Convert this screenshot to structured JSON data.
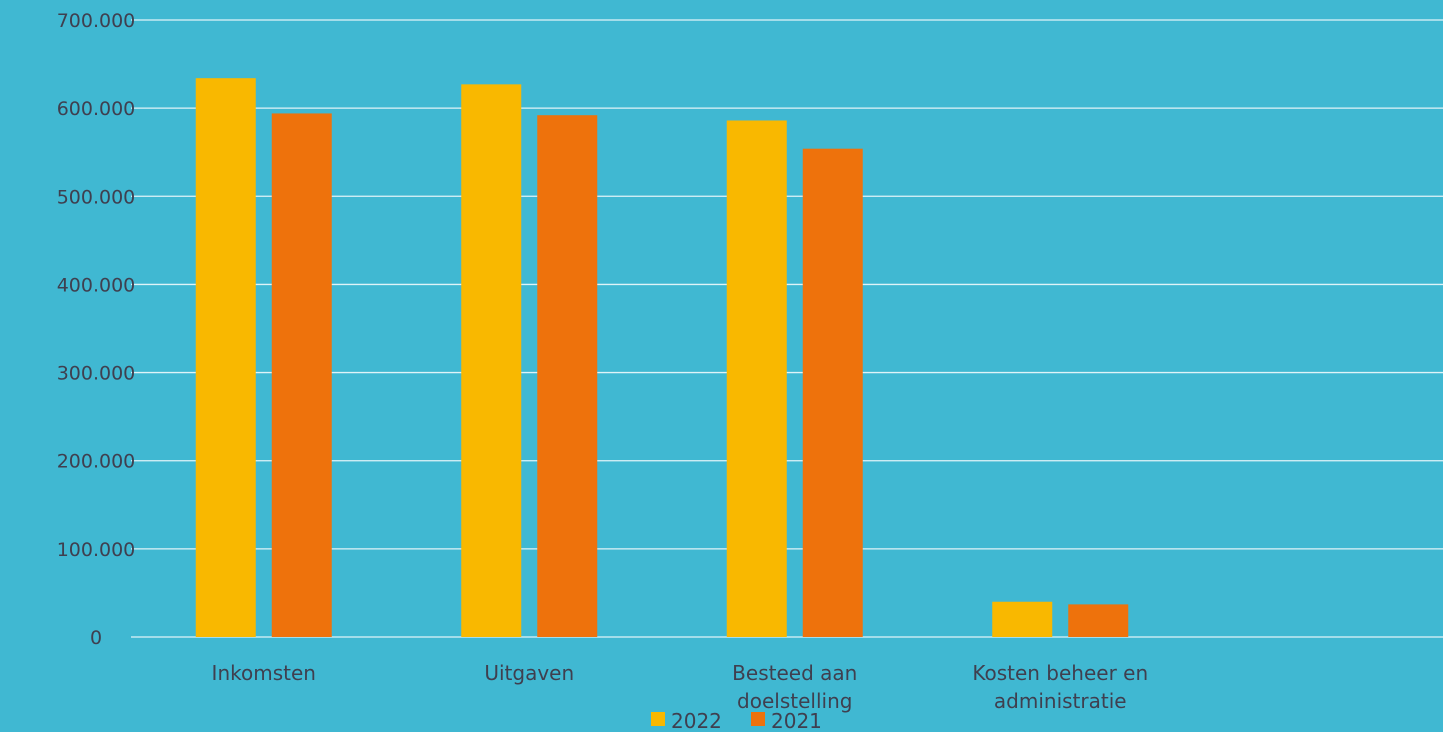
{
  "chart_data": {
    "type": "bar",
    "categories": [
      [
        "Inkomsten"
      ],
      [
        "Uitgaven"
      ],
      [
        "Besteed aan",
        "doelstelling"
      ],
      [
        "Kosten beheer en",
        "administratie"
      ]
    ],
    "series": [
      {
        "name": "2022",
        "color": "#f9b800",
        "values": [
          634000,
          627000,
          586000,
          40000
        ]
      },
      {
        "name": "2021",
        "color": "#ee720c",
        "values": [
          594000,
          592000,
          554000,
          37000
        ]
      }
    ],
    "y_ticks": [
      "0",
      "100.000",
      "200.000",
      "300.000",
      "400.000",
      "500.000",
      "600.000",
      "700.000"
    ],
    "ylim": [
      0,
      700000
    ],
    "grid": true,
    "legend_position": "bottom",
    "gridline_color": "#dff3f8",
    "background": "#40b8d2"
  }
}
